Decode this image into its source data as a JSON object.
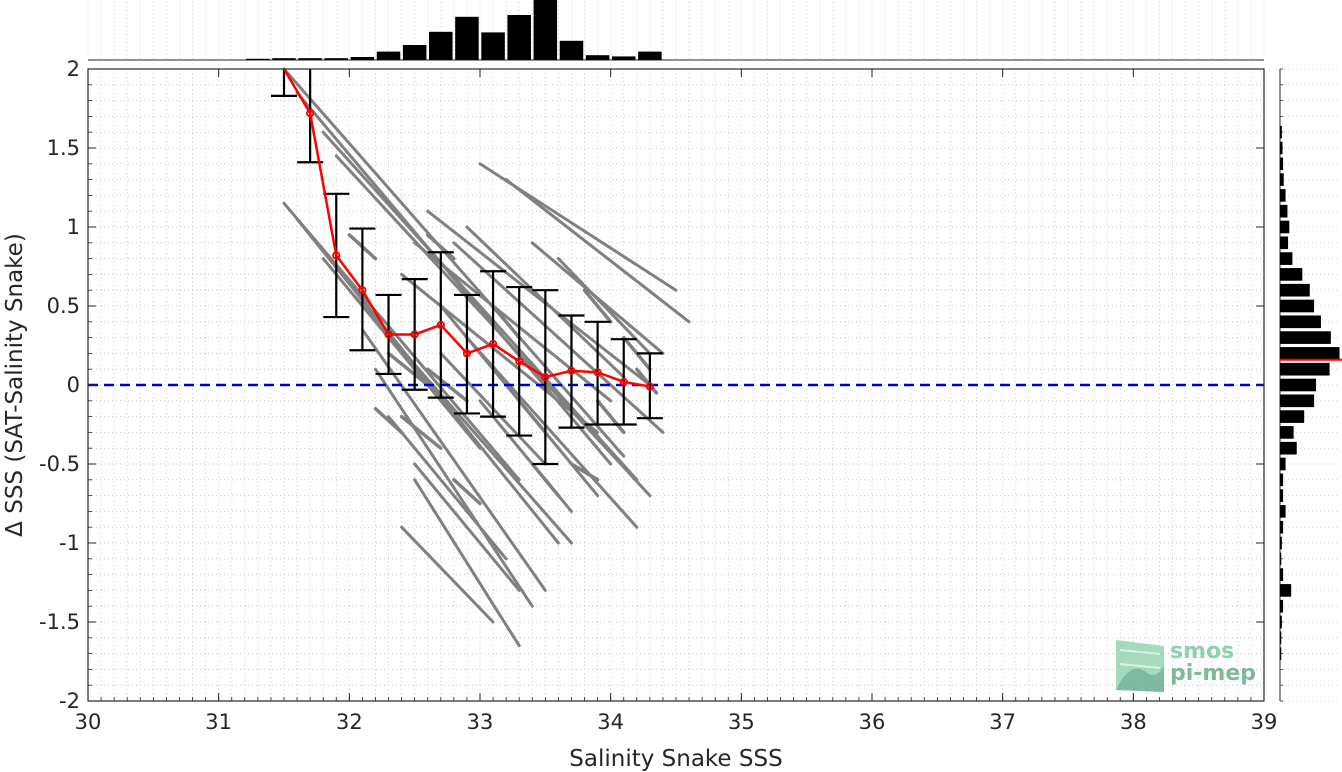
{
  "chart_data": {
    "type": "scatter",
    "xlabel": "Salinity Snake SSS",
    "ylabel": "Δ SSS (SAT-Salinity Snake)",
    "xlim": [
      30,
      39
    ],
    "ylim": [
      -2,
      2
    ],
    "x_ticks": [
      "30",
      "31",
      "32",
      "33",
      "34",
      "35",
      "36",
      "37",
      "38",
      "39"
    ],
    "y_ticks": [
      "2",
      "1.5",
      "1",
      "0.5",
      "0",
      "-0.5",
      "-1",
      "-1.5",
      "-2"
    ],
    "grid": "minor dotted",
    "zero_line": {
      "y": 0,
      "color": "#0000cc",
      "style": "dashed"
    },
    "scatter_streaks": {
      "color": "#808080",
      "segments": [
        [
          [
            31.5,
            2.0
          ],
          [
            34.1,
            -0.45
          ]
        ],
        [
          [
            31.6,
            1.85
          ],
          [
            34.0,
            -0.5
          ]
        ],
        [
          [
            31.8,
            1.6
          ],
          [
            34.2,
            -0.6
          ]
        ],
        [
          [
            31.9,
            1.45
          ],
          [
            34.3,
            -0.7
          ]
        ],
        [
          [
            31.5,
            1.15
          ],
          [
            33.3,
            -0.6
          ]
        ],
        [
          [
            31.6,
            1.05
          ],
          [
            33.6,
            -1.0
          ]
        ],
        [
          [
            31.8,
            0.8
          ],
          [
            33.0,
            -0.4
          ]
        ],
        [
          [
            32.0,
            0.6
          ],
          [
            33.7,
            -1.0
          ]
        ],
        [
          [
            32.1,
            0.35
          ],
          [
            33.5,
            -1.3
          ]
        ],
        [
          [
            32.2,
            0.1
          ],
          [
            33.4,
            -1.4
          ]
        ],
        [
          [
            32.3,
            -0.2
          ],
          [
            33.2,
            -1.1
          ]
        ],
        [
          [
            32.5,
            -0.5
          ],
          [
            33.3,
            -1.3
          ]
        ],
        [
          [
            32.4,
            0.7
          ],
          [
            33.9,
            -0.3
          ]
        ],
        [
          [
            32.5,
            0.9
          ],
          [
            34.0,
            -0.1
          ]
        ],
        [
          [
            32.6,
            1.1
          ],
          [
            34.3,
            0.0
          ]
        ],
        [
          [
            32.8,
            0.9
          ],
          [
            34.4,
            -0.3
          ]
        ],
        [
          [
            33.0,
            1.4
          ],
          [
            34.5,
            0.6
          ]
        ],
        [
          [
            33.2,
            1.3
          ],
          [
            34.6,
            0.4
          ]
        ],
        [
          [
            32.7,
            0.5
          ],
          [
            33.9,
            -0.7
          ]
        ],
        [
          [
            32.9,
            0.3
          ],
          [
            34.2,
            -0.9
          ]
        ],
        [
          [
            33.0,
            -0.1
          ],
          [
            33.7,
            -0.8
          ]
        ],
        [
          [
            32.4,
            -0.9
          ],
          [
            33.1,
            -1.5
          ]
        ],
        [
          [
            32.5,
            -0.6
          ],
          [
            33.3,
            -1.65
          ]
        ],
        [
          [
            32.9,
            1.0
          ],
          [
            34.1,
            0.05
          ]
        ],
        [
          [
            33.4,
            0.9
          ],
          [
            34.4,
            0.2
          ]
        ],
        [
          [
            33.6,
            0.8
          ],
          [
            34.3,
            0.2
          ]
        ],
        [
          [
            32.7,
            0.2
          ],
          [
            33.5,
            -0.5
          ]
        ]
      ],
      "dashes": [
        [
          [
            32.3,
            0.2
          ],
          [
            32.6,
            0.0
          ]
        ],
        [
          [
            32.4,
            -0.2
          ],
          [
            32.7,
            -0.4
          ]
        ],
        [
          [
            32.6,
            0.1
          ],
          [
            32.9,
            -0.1
          ]
        ],
        [
          [
            33.1,
            0.5
          ],
          [
            33.3,
            0.3
          ]
        ],
        [
          [
            33.3,
            -0.1
          ],
          [
            33.5,
            -0.3
          ]
        ],
        [
          [
            33.8,
            0.6
          ],
          [
            34.0,
            0.4
          ]
        ],
        [
          [
            34.1,
            0.3
          ],
          [
            34.3,
            0.1
          ]
        ],
        [
          [
            33.9,
            -0.1
          ],
          [
            34.1,
            -0.3
          ]
        ],
        [
          [
            32.8,
            -0.6
          ],
          [
            33.0,
            -0.75
          ]
        ],
        [
          [
            33.4,
            -0.5
          ],
          [
            33.6,
            -0.7
          ]
        ],
        [
          [
            32.0,
            0.95
          ],
          [
            32.2,
            0.8
          ]
        ],
        [
          [
            32.6,
            0.95
          ],
          [
            32.8,
            0.8
          ]
        ],
        [
          [
            33.7,
            -0.5
          ],
          [
            33.9,
            -0.6
          ]
        ],
        [
          [
            34.2,
            0.1
          ],
          [
            34.35,
            -0.05
          ]
        ],
        [
          [
            32.2,
            -0.15
          ],
          [
            32.4,
            -0.3
          ]
        ]
      ]
    },
    "binned_mean": {
      "color": "#ff0000",
      "x": [
        31.5,
        31.7,
        31.9,
        32.1,
        32.3,
        32.5,
        32.7,
        32.9,
        33.1,
        33.3,
        33.5,
        33.7,
        33.9,
        34.1,
        34.3
      ],
      "y": [
        2.0,
        1.72,
        0.82,
        0.6,
        0.32,
        0.32,
        0.38,
        0.2,
        0.26,
        0.15,
        0.05,
        0.09,
        0.08,
        0.02,
        -0.01
      ]
    },
    "error_bars": {
      "color": "#000000",
      "x": [
        31.5,
        31.7,
        31.9,
        32.1,
        32.3,
        32.5,
        32.7,
        32.9,
        33.1,
        33.3,
        33.5,
        33.7,
        33.9,
        34.1,
        34.3
      ],
      "lower": [
        1.83,
        1.41,
        0.43,
        0.22,
        0.07,
        -0.03,
        -0.08,
        -0.18,
        -0.2,
        -0.32,
        -0.5,
        -0.27,
        -0.25,
        -0.25,
        -0.21
      ],
      "upper": [
        2.0,
        2.0,
        1.21,
        0.99,
        0.57,
        0.67,
        0.84,
        0.57,
        0.72,
        0.62,
        0.6,
        0.44,
        0.4,
        0.29,
        0.2
      ]
    },
    "top_histogram": {
      "color": "#000000",
      "x": [
        31.3,
        31.5,
        31.7,
        31.9,
        32.1,
        32.3,
        32.5,
        32.7,
        32.9,
        33.1,
        33.3,
        33.5,
        33.7,
        33.9,
        34.1,
        34.3
      ],
      "counts": [
        0.02,
        0.03,
        0.03,
        0.03,
        0.05,
        0.14,
        0.25,
        0.47,
        0.72,
        0.46,
        0.75,
        1.0,
        0.32,
        0.08,
        0.06,
        0.14
      ]
    },
    "right_histogram": {
      "color": "#000000",
      "mean_line": {
        "y": 0.16,
        "color": "#ff0000"
      },
      "y": [
        1.6,
        1.5,
        1.4,
        1.3,
        1.2,
        1.1,
        1.0,
        0.9,
        0.8,
        0.7,
        0.6,
        0.5,
        0.4,
        0.3,
        0.2,
        0.1,
        0.0,
        -0.1,
        -0.2,
        -0.3,
        -0.4,
        -0.5,
        -0.6,
        -0.7,
        -0.8,
        -0.9,
        -1.0,
        -1.1,
        -1.2,
        -1.3,
        -1.4,
        -1.5,
        -1.6,
        -1.7
      ],
      "counts": [
        0.03,
        0.04,
        0.05,
        0.06,
        0.09,
        0.12,
        0.15,
        0.13,
        0.2,
        0.36,
        0.48,
        0.55,
        0.66,
        0.82,
        0.96,
        0.8,
        0.58,
        0.55,
        0.39,
        0.22,
        0.27,
        0.09,
        0.05,
        0.05,
        0.09,
        0.05,
        0.03,
        0.02,
        0.05,
        0.18,
        0.05,
        0.03,
        0.02,
        0.02
      ]
    }
  },
  "logo": {
    "line1": "smos",
    "line2": "pi-mep"
  }
}
